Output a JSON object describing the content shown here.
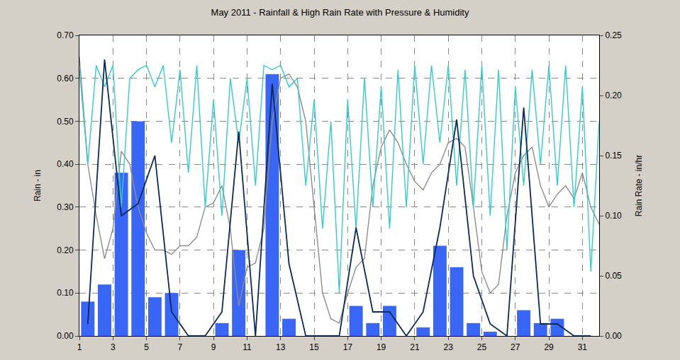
{
  "chart_data": {
    "type": "bar",
    "title": "May 2011 - Rainfall & High Rain Rate with Pressure & Humidity",
    "y_label": "Rain - in",
    "y2_label": "Rain Rate - in/hr",
    "grid": true,
    "xlim": [
      1,
      32
    ],
    "xticks": [
      1,
      3,
      5,
      7,
      9,
      11,
      13,
      15,
      17,
      19,
      21,
      23,
      25,
      27,
      29,
      31
    ],
    "ylim": [
      0,
      0.7
    ],
    "yticks": [
      {
        "value": 0,
        "label": "0.00"
      },
      {
        "value": 0.1,
        "label": "0.10"
      },
      {
        "value": 0.2,
        "label": "0.20"
      },
      {
        "value": 0.3,
        "label": "0.30"
      },
      {
        "value": 0.4,
        "label": "0.40"
      },
      {
        "value": 0.5,
        "label": "0.50"
      },
      {
        "value": 0.6,
        "label": "0.60"
      },
      {
        "value": 0.7,
        "label": "0.70"
      }
    ],
    "y2lim": [
      0,
      0.25
    ],
    "y2ticks": [
      {
        "value": 0,
        "label": "0.00"
      },
      {
        "value": 0.05,
        "label": "0.05"
      },
      {
        "value": 0.1,
        "label": "0.10"
      },
      {
        "value": 0.15,
        "label": "0.15"
      },
      {
        "value": 0.2,
        "label": "0.20"
      },
      {
        "value": 0.25,
        "label": "0.25"
      }
    ],
    "series": [
      {
        "type": "bar",
        "color": "#3a66f5",
        "x": [
          1.5,
          2.5,
          3.5,
          4.5,
          5.5,
          6.5,
          7.5,
          8.5,
          9.5,
          10.5,
          11.5,
          12.5,
          13.5,
          14.5,
          15.5,
          16.5,
          17.5,
          18.5,
          19.5,
          20.5,
          21.5,
          22.5,
          23.5,
          24.5,
          25.5,
          26.5,
          27.5,
          28.5,
          29.5,
          30.5,
          31.5
        ],
        "values": [
          0.08,
          0.12,
          0.38,
          0.5,
          0.09,
          0.1,
          0,
          0,
          0.03,
          0.2,
          0,
          0.61,
          0.04,
          0,
          0,
          0,
          0.07,
          0.03,
          0.07,
          0,
          0.02,
          0.21,
          0.16,
          0.03,
          0.01,
          0,
          0.06,
          0.03,
          0.04,
          0,
          0
        ]
      },
      {
        "type": "line",
        "color": "#8c8c8c",
        "x": [
          1,
          1.5,
          2,
          2.5,
          3,
          3.5,
          4,
          4.5,
          5,
          5.5,
          6,
          6.5,
          7,
          7.5,
          8,
          8.5,
          9,
          9.5,
          10,
          10.5,
          11,
          11.5,
          12,
          12.5,
          13,
          13.5,
          14,
          14.5,
          15,
          15.5,
          16,
          16.5,
          17,
          17.5,
          18,
          18.5,
          19,
          19.5,
          20,
          20.5,
          21,
          21.5,
          22,
          22.5,
          23,
          23.5,
          24,
          24.5,
          25,
          25.5,
          26,
          26.5,
          27,
          27.5,
          28,
          28.5,
          29,
          29.5,
          30,
          30.5,
          31,
          31.5,
          32
        ],
        "values": [
          0.65,
          0.4,
          0.28,
          0.18,
          0.25,
          0.43,
          0.4,
          0.3,
          0.24,
          0.2,
          0.2,
          0.19,
          0.21,
          0.21,
          0.23,
          0.3,
          0.31,
          0.35,
          0.25,
          0.07,
          0.16,
          0.17,
          0.25,
          0.5,
          0.6,
          0.61,
          0.58,
          0.5,
          0.3,
          0.1,
          0.04,
          0.03,
          0.1,
          0.16,
          0.18,
          0.35,
          0.44,
          0.48,
          0.45,
          0.4,
          0.36,
          0.34,
          0.38,
          0.4,
          0.45,
          0.46,
          0.44,
          0.3,
          0.15,
          0.1,
          0.12,
          0.28,
          0.38,
          0.42,
          0.44,
          0.35,
          0.3,
          0.33,
          0.35,
          0.32,
          0.38,
          0.3,
          0.26
        ]
      },
      {
        "type": "line",
        "color": "#33cccc",
        "x": [
          1,
          1.5,
          2,
          2.5,
          3,
          3.5,
          4,
          4.5,
          5,
          5.5,
          6,
          6.5,
          7,
          7.5,
          8,
          8.5,
          9,
          9.5,
          10,
          10.5,
          11,
          11.5,
          12,
          12.5,
          13,
          13.5,
          14,
          14.5,
          15,
          15.5,
          16,
          16.5,
          17,
          17.5,
          18,
          18.5,
          19,
          19.5,
          20,
          20.5,
          21,
          21.5,
          22,
          22.5,
          23,
          23.5,
          24,
          24.5,
          25,
          25.5,
          26,
          26.5,
          27,
          27.5,
          28,
          28.5,
          29,
          29.5,
          30,
          30.5,
          31,
          31.5,
          32
        ],
        "values": [
          0.62,
          0.4,
          0.63,
          0.58,
          0.63,
          0.3,
          0.6,
          0.62,
          0.63,
          0.58,
          0.63,
          0.45,
          0.62,
          0.38,
          0.63,
          0.3,
          0.55,
          0.28,
          0.6,
          0.45,
          0.6,
          0.35,
          0.63,
          0.62,
          0.63,
          0.58,
          0.6,
          0.35,
          0.55,
          0.25,
          0.5,
          0.1,
          0.55,
          0.25,
          0.6,
          0.3,
          0.58,
          0.25,
          0.62,
          0.3,
          0.63,
          0.4,
          0.63,
          0.45,
          0.63,
          0.35,
          0.62,
          0.3,
          0.63,
          0.28,
          0.62,
          0.2,
          0.58,
          0.35,
          0.62,
          0.4,
          0.63,
          0.35,
          0.63,
          0.3,
          0.58,
          0.15,
          0.5
        ]
      },
      {
        "type": "line",
        "axis": "y2",
        "color": "#0b2a5c",
        "x": [
          1.5,
          2.5,
          3.5,
          4.5,
          5.5,
          6.5,
          7.5,
          8.5,
          9.5,
          10.5,
          11.5,
          12.5,
          13.5,
          14.5,
          15.5,
          16.5,
          17.5,
          18.5,
          19.5,
          20.5,
          21.5,
          22.5,
          23.5,
          24.5,
          25.5,
          26.5,
          27.5,
          28.5,
          29.5,
          30.5,
          31.5
        ],
        "values": [
          0.01,
          0.23,
          0.1,
          0.11,
          0.15,
          0.02,
          0,
          0,
          0.02,
          0.17,
          0,
          0.21,
          0.06,
          0,
          0,
          0,
          0.09,
          0.02,
          0.02,
          0,
          0.02,
          0.09,
          0.18,
          0.05,
          0.01,
          0,
          0.19,
          0.01,
          0.01,
          0,
          0
        ]
      }
    ]
  }
}
